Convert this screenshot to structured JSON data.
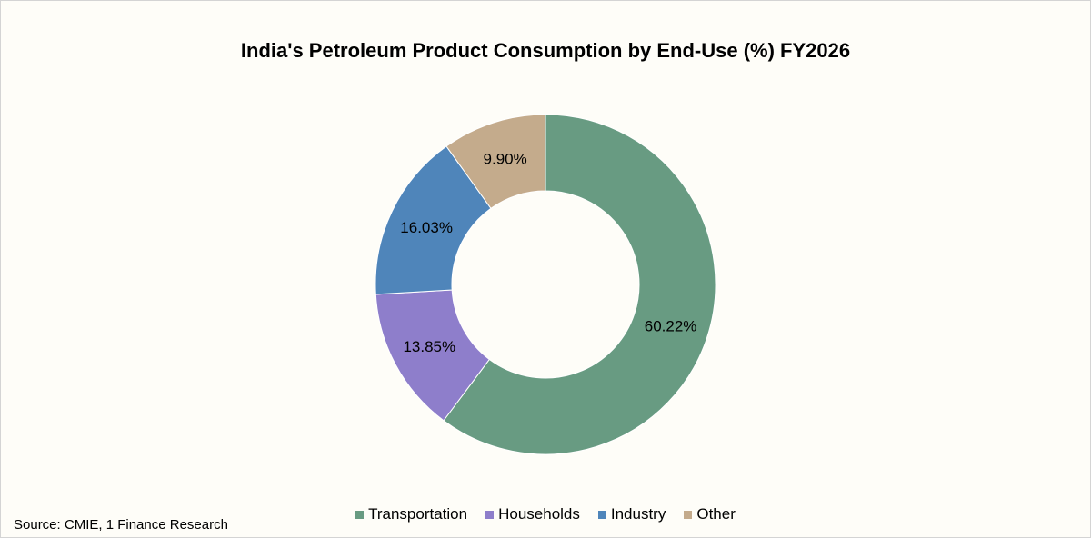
{
  "chart_data": {
    "type": "pie",
    "subtype": "donut",
    "title": "India's Petroleum Product Consumption by End-Use (%) FY2026",
    "categories": [
      "Transportation",
      "Households",
      "Industry",
      "Other"
    ],
    "values": [
      60.22,
      13.85,
      16.03,
      9.9
    ],
    "labels": [
      "60.22%",
      "13.85%",
      "16.03%",
      "9.90%"
    ],
    "colors": [
      "#689b82",
      "#8e7ecb",
      "#4f85ba",
      "#c4ab8c"
    ],
    "legend_position": "bottom"
  },
  "source": "Source: CMIE, 1 Finance Research"
}
